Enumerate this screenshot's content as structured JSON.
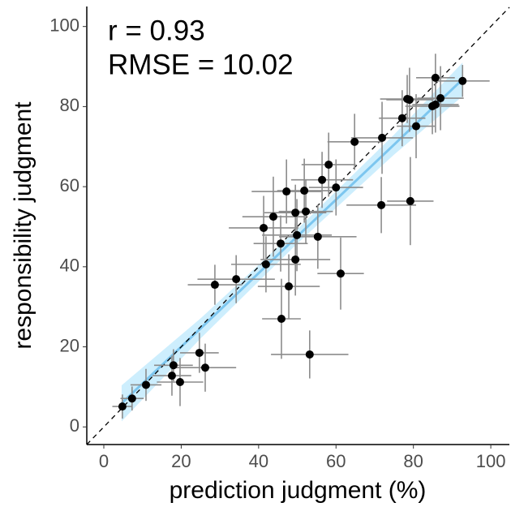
{
  "chart_data": {
    "type": "scatter",
    "xlabel": "prediction judgment (%)",
    "ylabel": "responsibility judgment",
    "annotations": [
      "r = 0.93",
      "RMSE = 10.02"
    ],
    "xlim": [
      -4.4,
      104.8
    ],
    "ylim": [
      -4.4,
      105
    ],
    "xticks": [
      0,
      20,
      40,
      60,
      80,
      100
    ],
    "yticks": [
      0,
      20,
      40,
      60,
      80,
      100
    ],
    "identity_line": true,
    "color": "#000000",
    "error_color": "#8c8c8c",
    "x": [
      4.8,
      7.3,
      10.9,
      18.0,
      17.6,
      19.7,
      24.7,
      26.2,
      28.7,
      34.2,
      41.9,
      41.3,
      43.8,
      47.2,
      45.7,
      47.8,
      45.9,
      49.5,
      49.9,
      49.5,
      51.8,
      52.2,
      53.2,
      55.3,
      56.4,
      58.1,
      60.0,
      61.2,
      64.8,
      71.7,
      71.9,
      79.2,
      77.1,
      78.4,
      79.0,
      80.7,
      84.9,
      85.7,
      85.7,
      87.0,
      92.7
    ],
    "values": [
      5.1,
      7.1,
      10.5,
      15.4,
      12.8,
      11.2,
      18.5,
      14.8,
      35.5,
      36.9,
      40.6,
      49.7,
      52.5,
      58.8,
      45.8,
      35.1,
      27.0,
      53.5,
      47.9,
      41.8,
      59.0,
      53.8,
      18.1,
      47.5,
      61.7,
      65.5,
      59.8,
      38.3,
      71.2,
      55.4,
      72.2,
      56.4,
      77.1,
      81.9,
      81.7,
      75.1,
      80.1,
      80.5,
      87.2,
      82.1,
      86.4
    ],
    "x_err": [
      2.6,
      3,
      4,
      5,
      5,
      6,
      5,
      8,
      7,
      10,
      9,
      9,
      8,
      9,
      7,
      8,
      5,
      8,
      9,
      9,
      7,
      7,
      10,
      10,
      8,
      7,
      7,
      6,
      7,
      9,
      8,
      6,
      6,
      7,
      6,
      5,
      7,
      6,
      5,
      6,
      7
    ],
    "y_err": [
      3,
      3,
      4,
      4,
      5,
      6,
      5,
      6,
      5,
      6,
      7,
      8,
      10,
      8,
      7,
      8,
      10,
      7,
      9,
      9,
      8,
      8,
      6,
      8,
      7,
      8,
      7,
      9,
      7,
      7,
      9,
      11,
      7,
      6,
      8,
      8,
      7,
      7,
      6,
      8,
      4
    ],
    "fit": {
      "color": "#7cc6ef",
      "band_color": "#cdeefd",
      "x": [
        4.6,
        25,
        50,
        75,
        92.7
      ],
      "values": [
        5.9,
        24.6,
        47.6,
        70.5,
        86.8
      ],
      "lower": [
        1.4,
        22.1,
        45.8,
        68.0,
        82.6
      ],
      "upper": [
        10.4,
        27.1,
        49.4,
        73.0,
        91.0
      ]
    }
  }
}
